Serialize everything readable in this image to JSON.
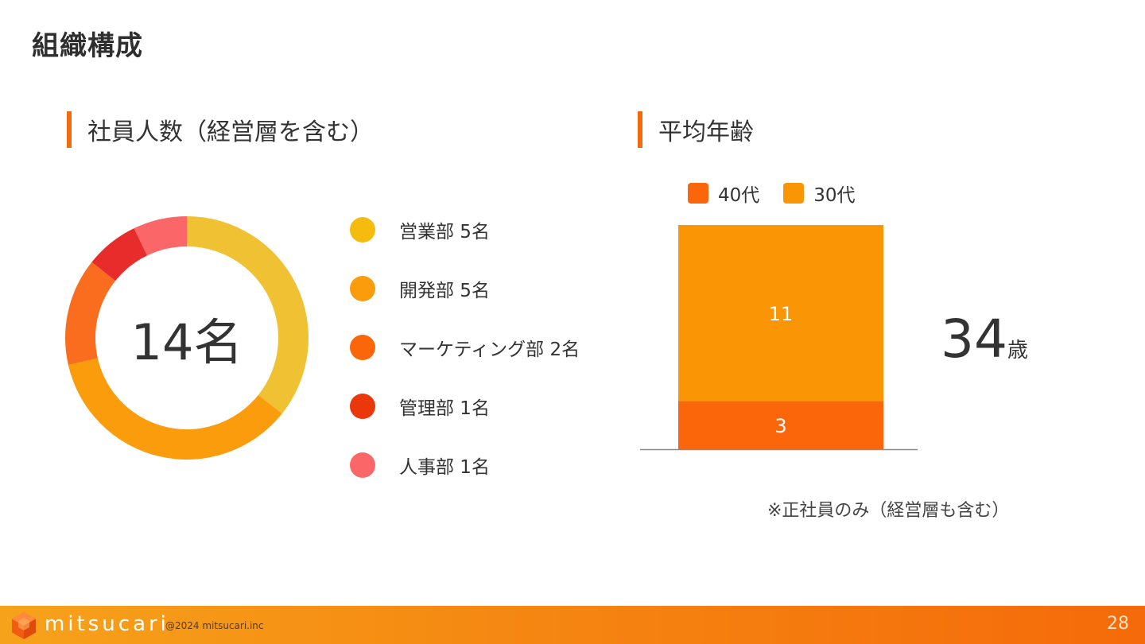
{
  "page": {
    "title": "組織構成",
    "page_number": "28"
  },
  "left_section": {
    "heading": "社員人数（経営層を含む）"
  },
  "right_section": {
    "heading": "平均年齢"
  },
  "center_label": "14名",
  "average_age": {
    "value": "34",
    "unit": "歳"
  },
  "note": "※正社員のみ（経営層も含む）",
  "footer": {
    "brand": "mitsucari",
    "copyright": "@2024 mitsucari.inc"
  },
  "chart_data": [
    {
      "type": "pie",
      "variant": "donut",
      "title": "",
      "total_label": "14名",
      "categories": [
        "営業部",
        "開発部",
        "マーケティング部",
        "管理部",
        "人事部"
      ],
      "values": [
        5,
        5,
        2,
        1,
        1
      ],
      "labels": [
        "営業部 5名",
        "開発部 5名",
        "マーケティング部 2名",
        "管理部 1名",
        "人事部 1名"
      ],
      "colors": [
        "#f0c132",
        "#fa9c0c",
        "#fa6d1f",
        "#e82c2c",
        "#fb6769"
      ],
      "legend_colors": [
        "#f5bb0f",
        "#fa9c0c",
        "#fc660a",
        "#ea380a",
        "#fb6769"
      ],
      "legend_position": "right"
    },
    {
      "type": "bar",
      "stacked": true,
      "categories": [
        ""
      ],
      "series": [
        {
          "name": "40代",
          "values": [
            3
          ],
          "color": "#fc660a"
        },
        {
          "name": "30代",
          "values": [
            11
          ],
          "color": "#fa9505"
        }
      ],
      "ylim": [
        0,
        14
      ],
      "legend_position": "top"
    }
  ]
}
